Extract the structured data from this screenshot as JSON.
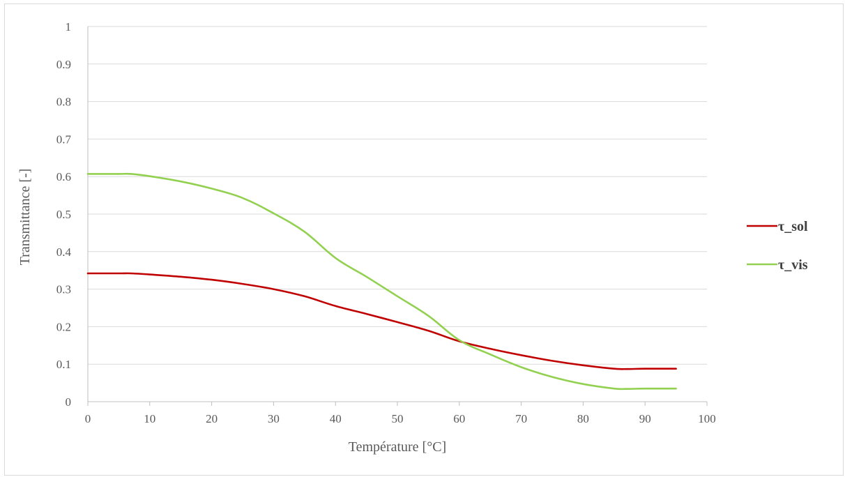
{
  "chart_data": {
    "type": "line",
    "title": "",
    "xlabel": "Température [°C]",
    "ylabel": "Transmittance [-]",
    "xlim": [
      0,
      100
    ],
    "ylim": [
      0,
      1
    ],
    "x_ticks": [
      "0",
      "10",
      "20",
      "30",
      "40",
      "50",
      "60",
      "70",
      "80",
      "90",
      "100"
    ],
    "y_ticks": [
      "0",
      "0.1",
      "0.2",
      "0.3",
      "0.4",
      "0.5",
      "0.6",
      "0.7",
      "0.8",
      "0.9",
      "1"
    ],
    "grid": true,
    "legend_position": "right",
    "series": [
      {
        "name": "τ_sol",
        "color": "#c00000",
        "x": [
          0,
          5,
          7,
          10,
          15,
          20,
          25,
          30,
          35,
          40,
          45,
          50,
          55,
          60,
          65,
          70,
          75,
          80,
          85,
          87,
          90,
          95
        ],
        "y": [
          0.342,
          0.342,
          0.342,
          0.339,
          0.333,
          0.325,
          0.314,
          0.3,
          0.281,
          0.255,
          0.234,
          0.212,
          0.189,
          0.161,
          0.141,
          0.124,
          0.109,
          0.097,
          0.088,
          0.087,
          0.088,
          0.088
        ]
      },
      {
        "name": "τ_vis",
        "color": "#92d050",
        "x": [
          0,
          5,
          7,
          10,
          15,
          20,
          25,
          30,
          35,
          40,
          45,
          50,
          55,
          60,
          65,
          70,
          75,
          80,
          85,
          87,
          90,
          95
        ],
        "y": [
          0.607,
          0.607,
          0.607,
          0.601,
          0.587,
          0.568,
          0.543,
          0.502,
          0.453,
          0.383,
          0.333,
          0.281,
          0.229,
          0.164,
          0.126,
          0.092,
          0.066,
          0.047,
          0.035,
          0.034,
          0.035,
          0.035
        ]
      }
    ]
  }
}
